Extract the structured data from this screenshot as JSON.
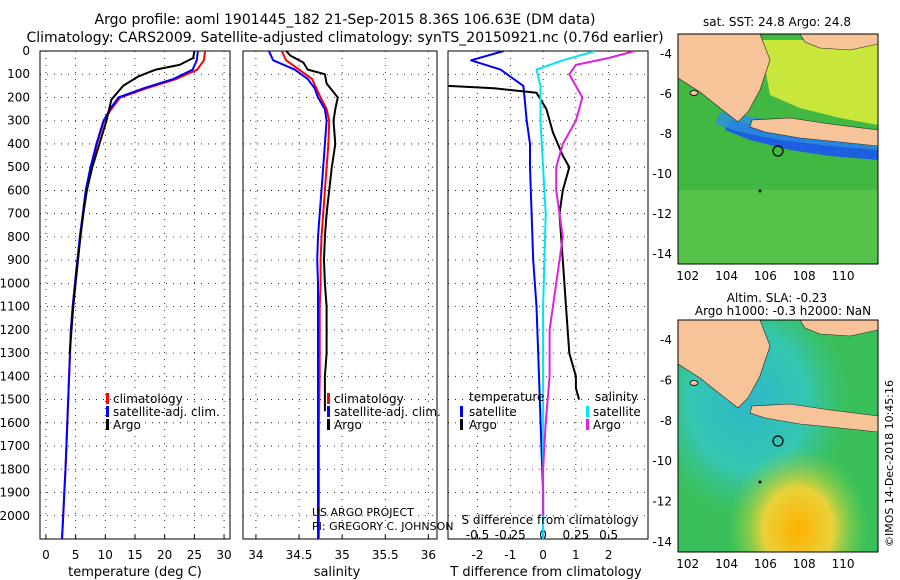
{
  "header": {
    "line1": "Argo profile: aoml 1901445_182 21-Sep-2015 8.36S 106.63E (DM data)",
    "line2": "Climatology: CARS2009. Satellite-adjusted climatology: synTS_20150921.nc (0.76d earlier)"
  },
  "credits": {
    "project": "US ARGO PROJECT",
    "pi": "PI: GREGORY C. JOHNSON",
    "imos": "©IMOS 14-Dec-2018 10:45:16"
  },
  "colors": {
    "climatology": "#ff0000",
    "satellite": "#0000ff",
    "argo": "#000000",
    "sal_satellite": "#00e5ee",
    "sal_argo": "#e020e0",
    "land": "#f7c49a"
  },
  "maps": {
    "sst_title": "sat. SST: 24.8 Argo: 24.8",
    "sla_title1": "Altim. SLA: -0.23",
    "sla_title2": "Argo h1000: -0.3 h2000: NaN",
    "lat_ticks": [
      "-4",
      "-6",
      "-8",
      "-10",
      "-12",
      "-14"
    ],
    "lon_ticks": [
      "102",
      "104",
      "106",
      "108",
      "110"
    ],
    "argo_position": {
      "lon": 106.63,
      "lat": -8.36
    }
  },
  "chart_data": [
    {
      "type": "line",
      "id": "temperature",
      "title": "",
      "xlabel": "temperature (deg C)",
      "ylabel": "",
      "xlim": [
        -1,
        31
      ],
      "ylim": [
        0,
        2100
      ],
      "y_inverted": true,
      "xticks": [
        "0",
        "5",
        "10",
        "15",
        "20",
        "25",
        "30"
      ],
      "yticks": [
        "0",
        "100",
        "200",
        "300",
        "400",
        "500",
        "600",
        "700",
        "800",
        "900",
        "1000",
        "1100",
        "1200",
        "1300",
        "1400",
        "1500",
        "1600",
        "1700",
        "1800",
        "1900",
        "2000"
      ],
      "legend": [
        "climatology",
        "satellite-adj. clim.",
        "Argo"
      ],
      "legend_placement": "lower-center",
      "series": [
        {
          "name": "climatology",
          "color": "#ff0000",
          "x": [
            26.8,
            26.6,
            25.5,
            22,
            17,
            12.5,
            11,
            9.8,
            8.6,
            7.6,
            6.8,
            6.3,
            5.8,
            5.3,
            4.9,
            4.5,
            4.2,
            3.9,
            3.6,
            3.3,
            3.1,
            2.9,
            2.7
          ],
          "y": [
            0,
            40,
            80,
            120,
            160,
            200,
            250,
            300,
            400,
            500,
            600,
            700,
            800,
            900,
            1000,
            1100,
            1200,
            1400,
            1600,
            1800,
            1900,
            2000,
            2100
          ]
        },
        {
          "name": "satellite-adj. clim.",
          "color": "#0000ff",
          "x": [
            25.6,
            25.4,
            24.7,
            21.5,
            16.5,
            12.2,
            10.8,
            9.7,
            8.5,
            7.5,
            6.7,
            6.2,
            5.7,
            5.3,
            4.9,
            4.5,
            4.2,
            3.9,
            3.6,
            3.3,
            3.1,
            2.9,
            2.7
          ],
          "y": [
            0,
            40,
            80,
            120,
            160,
            200,
            250,
            300,
            400,
            500,
            600,
            700,
            800,
            900,
            1000,
            1100,
            1200,
            1400,
            1600,
            1800,
            1900,
            2000,
            2100
          ]
        },
        {
          "name": "Argo",
          "color": "#000000",
          "x": [
            25.0,
            24.8,
            22.5,
            18.5,
            15.5,
            13.0,
            11.0,
            10.2,
            9.0,
            7.8,
            6.9,
            6.3,
            5.8,
            5.4,
            5.0,
            4.6,
            4.3,
            4.0
          ],
          "y": [
            0,
            30,
            60,
            80,
            110,
            150,
            210,
            300,
            400,
            500,
            600,
            700,
            800,
            900,
            1000,
            1100,
            1200,
            1300
          ]
        }
      ]
    },
    {
      "type": "line",
      "id": "salinity",
      "title": "",
      "xlabel": "salinity",
      "ylabel": "",
      "xlim": [
        33.85,
        36.1
      ],
      "ylim": [
        0,
        2100
      ],
      "y_inverted": true,
      "xticks": [
        "34",
        "34.5",
        "35",
        "35.5",
        "36"
      ],
      "legend": [
        "climatology",
        "satellite-adj. clim.",
        "Argo"
      ],
      "legend_placement": "lower-right",
      "series": [
        {
          "name": "climatology",
          "color": "#ff0000",
          "x": [
            34.3,
            34.35,
            34.5,
            34.65,
            34.7,
            34.75,
            34.82,
            34.85,
            34.84,
            34.82,
            34.8,
            34.78,
            34.76,
            34.75,
            34.75,
            34.74,
            34.74,
            34.74,
            34.73,
            34.73,
            34.73,
            34.73
          ],
          "y": [
            0,
            40,
            80,
            120,
            160,
            200,
            250,
            300,
            400,
            500,
            600,
            700,
            800,
            900,
            1000,
            1100,
            1200,
            1400,
            1600,
            1800,
            2000,
            2100
          ]
        },
        {
          "name": "satellite-adj. clim.",
          "color": "#0000ff",
          "x": [
            34.15,
            34.2,
            34.45,
            34.6,
            34.68,
            34.72,
            34.8,
            34.82,
            34.8,
            34.78,
            34.76,
            34.74,
            34.72,
            34.71,
            34.72,
            34.72,
            34.72,
            34.72,
            34.72,
            34.72,
            34.72,
            34.72
          ],
          "y": [
            0,
            40,
            80,
            120,
            160,
            200,
            250,
            300,
            400,
            500,
            600,
            700,
            800,
            900,
            1000,
            1100,
            1200,
            1400,
            1600,
            1800,
            2000,
            2100
          ]
        },
        {
          "name": "Argo",
          "color": "#000000",
          "x": [
            34.35,
            34.4,
            34.55,
            34.6,
            34.8,
            34.82,
            34.95,
            34.92,
            34.9,
            34.92,
            34.88,
            34.85,
            34.82,
            34.8,
            34.79,
            34.8,
            34.82,
            34.82,
            34.8,
            34.8,
            34.8
          ],
          "y": [
            0,
            20,
            50,
            80,
            100,
            140,
            200,
            250,
            300,
            400,
            500,
            600,
            700,
            800,
            900,
            1000,
            1100,
            1300,
            1400,
            1500,
            1550
          ]
        }
      ]
    },
    {
      "type": "line",
      "id": "difference",
      "title": "",
      "xlabel": "T difference from climatology",
      "xlabel2": "S difference from climatology",
      "ylabel": "",
      "xlim": [
        -2.9,
        3.2
      ],
      "x2lim": [
        -0.725,
        0.8
      ],
      "ylim": [
        0,
        2100
      ],
      "y_inverted": true,
      "xticks": [
        "-2",
        "-1",
        "0",
        "1",
        "2"
      ],
      "x2ticks": [
        "-0.5",
        "-0.25",
        "0",
        "0.25",
        "0.5"
      ],
      "legend_left_title": "temperature",
      "legend_right_title": "salinity",
      "legend_left": [
        "satellite",
        "Argo"
      ],
      "legend_right": [
        "satellite",
        "Argo"
      ],
      "series": [
        {
          "name": "temperature satellite",
          "color": "#0000ff",
          "axis": "T",
          "x": [
            -1.2,
            -2.2,
            -1.3,
            -0.6,
            -0.5,
            -0.4,
            -0.4,
            -0.35,
            -0.3,
            -0.2,
            -0.15,
            -0.1,
            -0.05,
            0.0,
            0.0,
            0.0
          ],
          "y": [
            0,
            40,
            80,
            150,
            300,
            400,
            500,
            700,
            900,
            1100,
            1300,
            1500,
            1700,
            1900,
            2000,
            2100
          ]
        },
        {
          "name": "temperature Argo",
          "color": "#000000",
          "axis": "T",
          "x": [
            -2.9,
            -1.5,
            -0.2,
            0.1,
            0.3,
            0.6,
            0.8,
            0.6,
            0.5,
            0.6,
            0.7,
            0.8,
            1.0,
            1.0,
            1.1
          ],
          "y": [
            150,
            160,
            180,
            250,
            350,
            450,
            500,
            600,
            700,
            900,
            1100,
            1300,
            1400,
            1450,
            1500
          ]
        },
        {
          "name": "salinity satellite",
          "color": "#00e5ee",
          "axis": "S",
          "x": [
            0.4,
            0.15,
            -0.05,
            -0.02,
            -0.02,
            0.0,
            0.02,
            0.01,
            0.0,
            0.0,
            0.0,
            0.0,
            0.0
          ],
          "y": [
            0,
            40,
            80,
            150,
            300,
            500,
            700,
            900,
            1100,
            1300,
            1600,
            1900,
            2100
          ]
        },
        {
          "name": "salinity Argo",
          "color": "#e020e0",
          "axis": "S",
          "x": [
            0.7,
            0.5,
            0.25,
            0.2,
            0.3,
            0.25,
            0.15,
            0.1,
            0.1,
            0.15,
            0.1,
            0.05,
            0.05,
            0.02,
            0.0,
            0.0
          ],
          "y": [
            0,
            30,
            60,
            100,
            200,
            300,
            400,
            500,
            600,
            800,
            1000,
            1200,
            1400,
            1600,
            1800,
            2000
          ]
        }
      ]
    }
  ]
}
